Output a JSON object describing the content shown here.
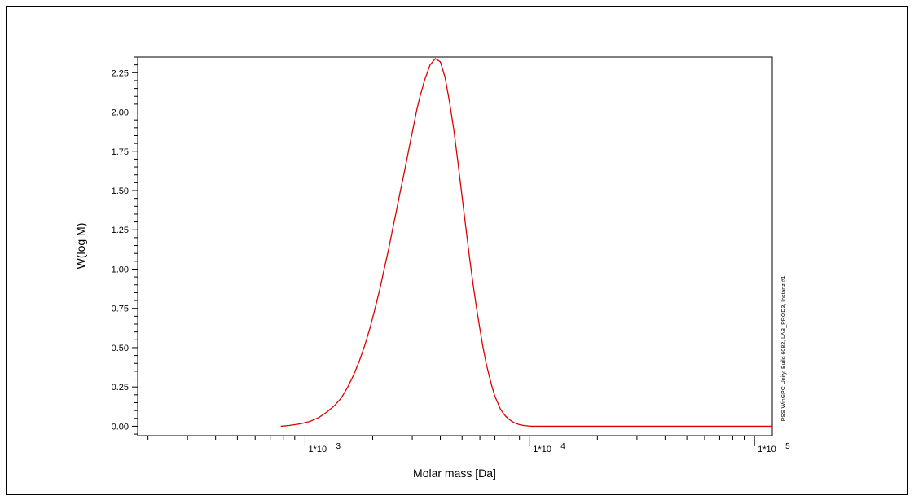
{
  "chart_data": {
    "type": "line",
    "xlabel": "Molar mass [Da]",
    "ylabel": "W(log M)",
    "x_scale": "log",
    "xlim": [
      180,
      120000
    ],
    "ylim": [
      -0.06,
      2.35
    ],
    "y_ticks": [
      "0.00",
      "0.25",
      "0.50",
      "0.75",
      "1.00",
      "1.25",
      "1.50",
      "1.75",
      "2.00",
      "2.25"
    ],
    "x_major_ticks": [
      {
        "base": "1*10",
        "exp": "3",
        "value": 1000
      },
      {
        "base": "1*10",
        "exp": "4",
        "value": 10000
      },
      {
        "base": "1*10",
        "exp": "5",
        "value": 100000
      }
    ],
    "grid": false,
    "series_color": "#dd0000",
    "series": [
      {
        "x": [
          780,
          850,
          950,
          1050,
          1150,
          1250,
          1350,
          1450,
          1550,
          1650,
          1750,
          1850,
          1950,
          2050,
          2150,
          2250,
          2350,
          2450,
          2550,
          2650,
          2750,
          2850,
          2950,
          3050,
          3150,
          3250,
          3400,
          3600,
          3800,
          4000,
          4200,
          4400,
          4600,
          4800,
          5000,
          5200,
          5400,
          5600,
          5800,
          6000,
          6200,
          6400,
          6600,
          6800,
          7000,
          7200,
          7400,
          7600,
          7800,
          8000,
          8300,
          8600,
          9000,
          9400,
          9800,
          10200,
          10500,
          11000,
          12000,
          20000,
          50000,
          100000,
          120000
        ],
        "y": [
          0.0,
          0.005,
          0.015,
          0.03,
          0.055,
          0.09,
          0.13,
          0.18,
          0.25,
          0.33,
          0.42,
          0.52,
          0.63,
          0.75,
          0.87,
          1.0,
          1.12,
          1.25,
          1.37,
          1.49,
          1.6,
          1.71,
          1.82,
          1.92,
          2.02,
          2.1,
          2.2,
          2.3,
          2.34,
          2.32,
          2.22,
          2.06,
          1.88,
          1.67,
          1.46,
          1.26,
          1.07,
          0.9,
          0.75,
          0.62,
          0.5,
          0.4,
          0.32,
          0.25,
          0.19,
          0.15,
          0.11,
          0.085,
          0.065,
          0.05,
          0.032,
          0.02,
          0.01,
          0.005,
          0.002,
          0.0,
          0.0,
          0.0,
          0.0,
          0.0,
          0.0,
          0.0,
          0.0
        ]
      }
    ]
  },
  "side_text": "PSS WinGPC Unity, Build 6082, LAB_PROD3, Instanz #1"
}
